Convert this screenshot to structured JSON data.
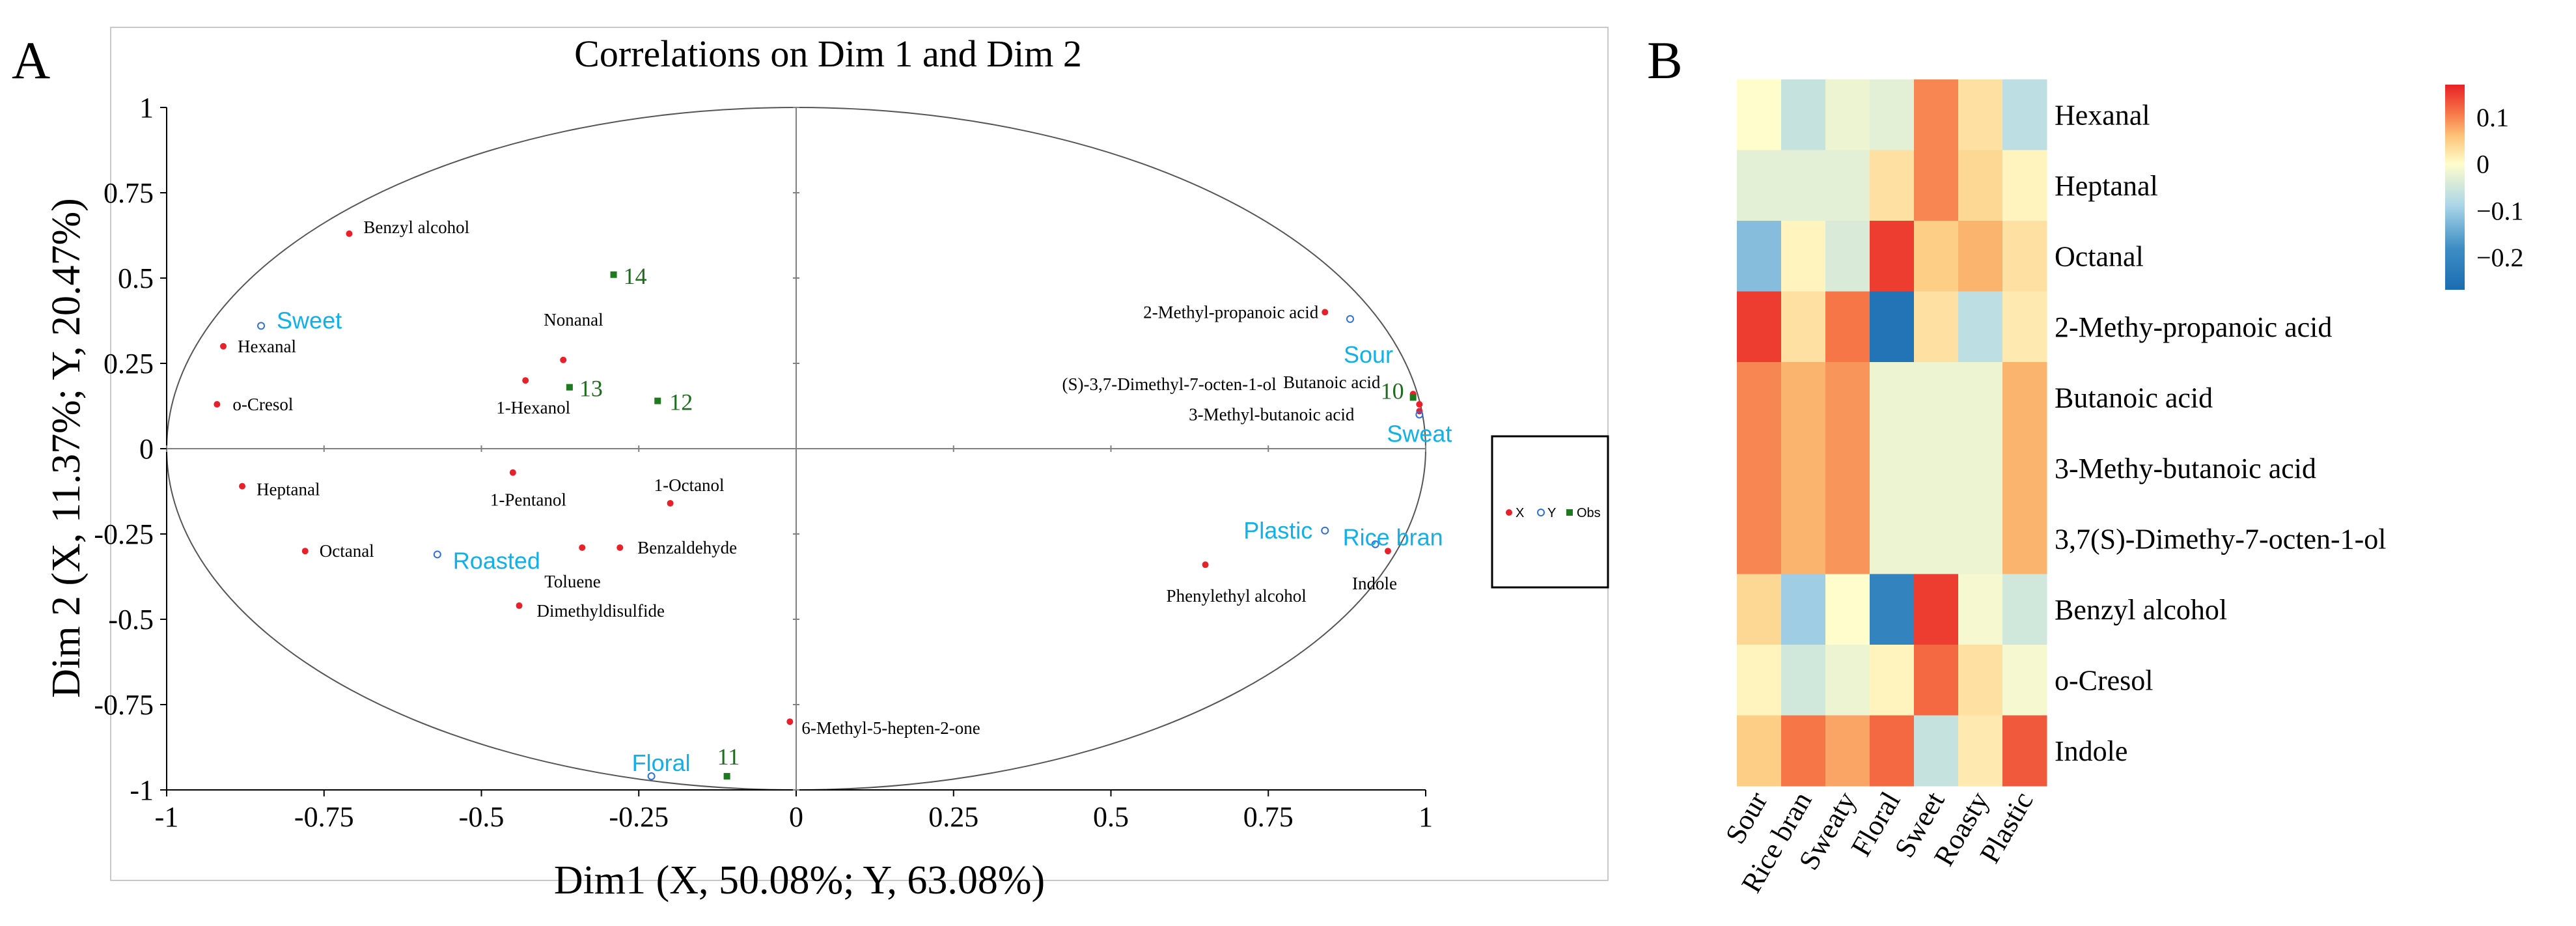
{
  "panels": {
    "a_label": "A",
    "b_label": "B"
  },
  "colors": {
    "x_points": "#e8202a",
    "y_points": "#2f6fdb",
    "obs_points": "#1f7a1f",
    "y_text": "#12b0e8",
    "obs_text": "#1f6b1f",
    "frame": "#c8c8c8",
    "axis": "#808080"
  },
  "chart_data": [
    {
      "type": "scatter",
      "title": "Correlations on Dim 1 and Dim 2",
      "xlabel": "Dim1 (X, 50.08%; Y, 63.08%)",
      "ylabel": "Dim 2 (X, 11.37%; Y, 20.47%)",
      "xlim": [
        -1,
        1
      ],
      "ylim": [
        -1,
        1
      ],
      "x_ticks": [
        "-1",
        "-0.75",
        "-0.5",
        "-0.25",
        "0",
        "0.25",
        "0.5",
        "0.75",
        "1"
      ],
      "y_ticks": [
        "1",
        "0.75",
        "0.5",
        "0.25",
        "0",
        "-0.25",
        "-0.5",
        "-0.75",
        "-1"
      ],
      "legend": {
        "position": "right",
        "entries": [
          "X",
          "Y",
          "Obs"
        ]
      },
      "series": [
        {
          "name": "X",
          "points": [
            {
              "label": "Benzyl alcohol",
              "x": -0.71,
              "y": 0.63
            },
            {
              "label": "Hexanal",
              "x": -0.91,
              "y": 0.3
            },
            {
              "label": "o-Cresol",
              "x": -0.92,
              "y": 0.13
            },
            {
              "label": "Nonanal",
              "x": -0.37,
              "y": 0.26
            },
            {
              "label": "1-Hexanol",
              "x": -0.43,
              "y": 0.2
            },
            {
              "label": "Heptanal",
              "x": -0.88,
              "y": -0.11
            },
            {
              "label": "1-Pentanol",
              "x": -0.45,
              "y": -0.07
            },
            {
              "label": "1-Octanol",
              "x": -0.2,
              "y": -0.16
            },
            {
              "label": "Octanal",
              "x": -0.78,
              "y": -0.3
            },
            {
              "label": "Toluene",
              "x": -0.34,
              "y": -0.29
            },
            {
              "label": "Benzaldehyde",
              "x": -0.28,
              "y": -0.29
            },
            {
              "label": "Dimethyldisulfide",
              "x": -0.44,
              "y": -0.46
            },
            {
              "label": "6-Methyl-5-hepten-2-one",
              "x": -0.01,
              "y": -0.8
            },
            {
              "label": "2-Methyl-propanoic acid",
              "x": 0.84,
              "y": 0.4
            },
            {
              "label": "(S)-3,7-Dimethyl-7-octen-1-ol",
              "x": 0.98,
              "y": 0.16
            },
            {
              "label": "Butanoic acid",
              "x": 0.99,
              "y": 0.13
            },
            {
              "label": "3-Methyl-butanoic acid",
              "x": 0.99,
              "y": 0.11
            },
            {
              "label": "Phenylethyl alcohol",
              "x": 0.65,
              "y": -0.34
            },
            {
              "label": "Indole",
              "x": 0.94,
              "y": -0.3
            }
          ]
        },
        {
          "name": "Y",
          "points": [
            {
              "label": "Sweet",
              "x": -0.85,
              "y": 0.36
            },
            {
              "label": "Sour",
              "x": 0.88,
              "y": 0.38
            },
            {
              "label": "Sweat",
              "x": 0.99,
              "y": 0.1
            },
            {
              "label": "Roasted",
              "x": -0.57,
              "y": -0.31
            },
            {
              "label": "Plastic",
              "x": 0.84,
              "y": -0.24
            },
            {
              "label": "Rice bran",
              "x": 0.92,
              "y": -0.28
            },
            {
              "label": "Floral",
              "x": -0.23,
              "y": -0.96
            }
          ]
        },
        {
          "name": "Obs",
          "points": [
            {
              "label": "14",
              "x": -0.29,
              "y": 0.51
            },
            {
              "label": "13",
              "x": -0.36,
              "y": 0.18
            },
            {
              "label": "12",
              "x": -0.22,
              "y": 0.14
            },
            {
              "label": "10",
              "x": 0.98,
              "y": 0.15
            },
            {
              "label": "11",
              "x": -0.11,
              "y": -0.96
            }
          ]
        }
      ]
    },
    {
      "type": "heatmap",
      "rows": [
        "Hexanal",
        "Heptanal",
        "Octanal",
        "2-Methy-propanoic acid",
        "Butanoic acid",
        "3-Methy-butanoic acid",
        "3,7(S)-Dimethy-7-octen-1-ol",
        "Benzyl alcohol",
        "o-Cresol",
        "Indole"
      ],
      "columns": [
        "Sour",
        "Rice bran",
        "Sweaty",
        "Floral",
        "Sweet",
        "Roasty",
        "Plastic"
      ],
      "values": [
        [
          0.0,
          -0.06,
          -0.02,
          -0.03,
          0.1,
          0.03,
          -0.07
        ],
        [
          -0.03,
          -0.03,
          -0.03,
          0.03,
          0.1,
          0.04,
          0.01
        ],
        [
          -0.12,
          0.01,
          -0.04,
          0.15,
          0.05,
          0.07,
          0.03
        ],
        [
          0.15,
          0.03,
          0.11,
          -0.25,
          0.03,
          -0.07,
          0.02
        ],
        [
          0.1,
          0.07,
          0.09,
          -0.02,
          -0.02,
          -0.02,
          0.07
        ],
        [
          0.1,
          0.07,
          0.09,
          -0.02,
          -0.02,
          -0.02,
          0.07
        ],
        [
          0.1,
          0.07,
          0.09,
          -0.02,
          -0.02,
          -0.02,
          0.07
        ],
        [
          0.04,
          -0.1,
          0.0,
          -0.21,
          0.15,
          -0.01,
          -0.05
        ],
        [
          0.01,
          -0.05,
          -0.02,
          0.01,
          0.12,
          0.03,
          -0.01
        ],
        [
          0.05,
          0.11,
          0.08,
          0.12,
          -0.06,
          0.02,
          0.13
        ]
      ],
      "colorbar": {
        "ticks": [
          "0.1",
          "0",
          "−0.1",
          "−0.2"
        ],
        "tick_values": [
          0.1,
          0,
          -0.1,
          -0.2
        ],
        "range": [
          -0.27,
          0.17
        ]
      }
    }
  ]
}
